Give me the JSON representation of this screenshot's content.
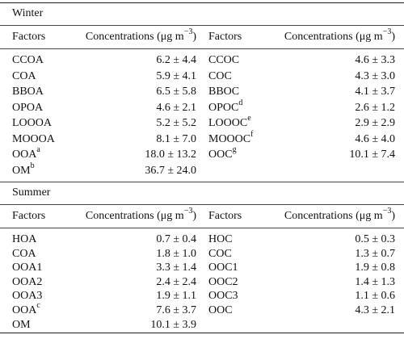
{
  "winter": {
    "title": "Winter",
    "headers": [
      "Factors",
      "Concentrations (μg m",
      "Factors",
      "Concentrations (μg m"
    ],
    "unit_exponent": "−3",
    "unit_close": ")",
    "left_rows": [
      {
        "factor": "CCOA",
        "sup": "",
        "conc": "6.2 ± 4.4"
      },
      {
        "factor": "COA",
        "sup": "",
        "conc": "5.9 ± 4.1"
      },
      {
        "factor": "BBOA",
        "sup": "",
        "conc": "6.5 ± 5.8"
      },
      {
        "factor": "OPOA",
        "sup": "",
        "conc": "4.6 ± 2.1"
      },
      {
        "factor": "LOOOA",
        "sup": "",
        "conc": "5.2 ± 5.2"
      },
      {
        "factor": "MOOOA",
        "sup": "",
        "conc": "8.1 ± 7.0"
      },
      {
        "factor": "OOA",
        "sup": "a",
        "conc": "18.0 ± 13.2"
      },
      {
        "factor": "OM",
        "sup": "b",
        "conc": "36.7 ± 24.0"
      }
    ],
    "right_rows": [
      {
        "factor": "CCOC",
        "sup": "",
        "conc": "4.6 ± 3.3"
      },
      {
        "factor": "COC",
        "sup": "",
        "conc": "4.3 ± 3.0"
      },
      {
        "factor": "BBOC",
        "sup": "",
        "conc": "4.1 ± 3.7"
      },
      {
        "factor": "OPOC",
        "sup": "d",
        "conc": "2.6 ± 1.2"
      },
      {
        "factor": "LOOOC",
        "sup": "e",
        "conc": "2.9 ± 2.9"
      },
      {
        "factor": "MOOOC",
        "sup": "f",
        "conc": "4.6 ± 4.0"
      },
      {
        "factor": "OOC",
        "sup": "g",
        "conc": "10.1 ± 7.4"
      }
    ]
  },
  "summer": {
    "title": "Summer",
    "headers": [
      "Factors",
      "Concentrations (μg m",
      "Factors",
      "Concentrations (μg m"
    ],
    "unit_exponent": "−3",
    "unit_close": ")",
    "left_rows": [
      {
        "factor": "HOA",
        "sup": "",
        "conc": "0.7 ± 0.4"
      },
      {
        "factor": "COA",
        "sup": "",
        "conc": "1.8 ± 1.0"
      },
      {
        "factor": "OOA1",
        "sup": "",
        "conc": "3.3 ± 1.4"
      },
      {
        "factor": "OOA2",
        "sup": "",
        "conc": "2.4 ± 2.4"
      },
      {
        "factor": "OOA3",
        "sup": "",
        "conc": "1.9 ± 1.1"
      },
      {
        "factor": "OOA",
        "sup": "c",
        "conc": "7.6 ± 3.7"
      },
      {
        "factor": "OM",
        "sup": "",
        "conc": "10.1 ± 3.9"
      }
    ],
    "right_rows": [
      {
        "factor": "HOC",
        "sup": "",
        "conc": "0.5 ± 0.3"
      },
      {
        "factor": "COC",
        "sup": "",
        "conc": "1.3 ± 0.7"
      },
      {
        "factor": "OOC1",
        "sup": "",
        "conc": "1.9 ± 0.8"
      },
      {
        "factor": "OOC2",
        "sup": "",
        "conc": "1.4 ± 1.3"
      },
      {
        "factor": "OOC3",
        "sup": "",
        "conc": "1.1 ± 0.6"
      },
      {
        "factor": "OOC",
        "sup": "",
        "conc": "4.3 ± 2.1"
      }
    ]
  }
}
